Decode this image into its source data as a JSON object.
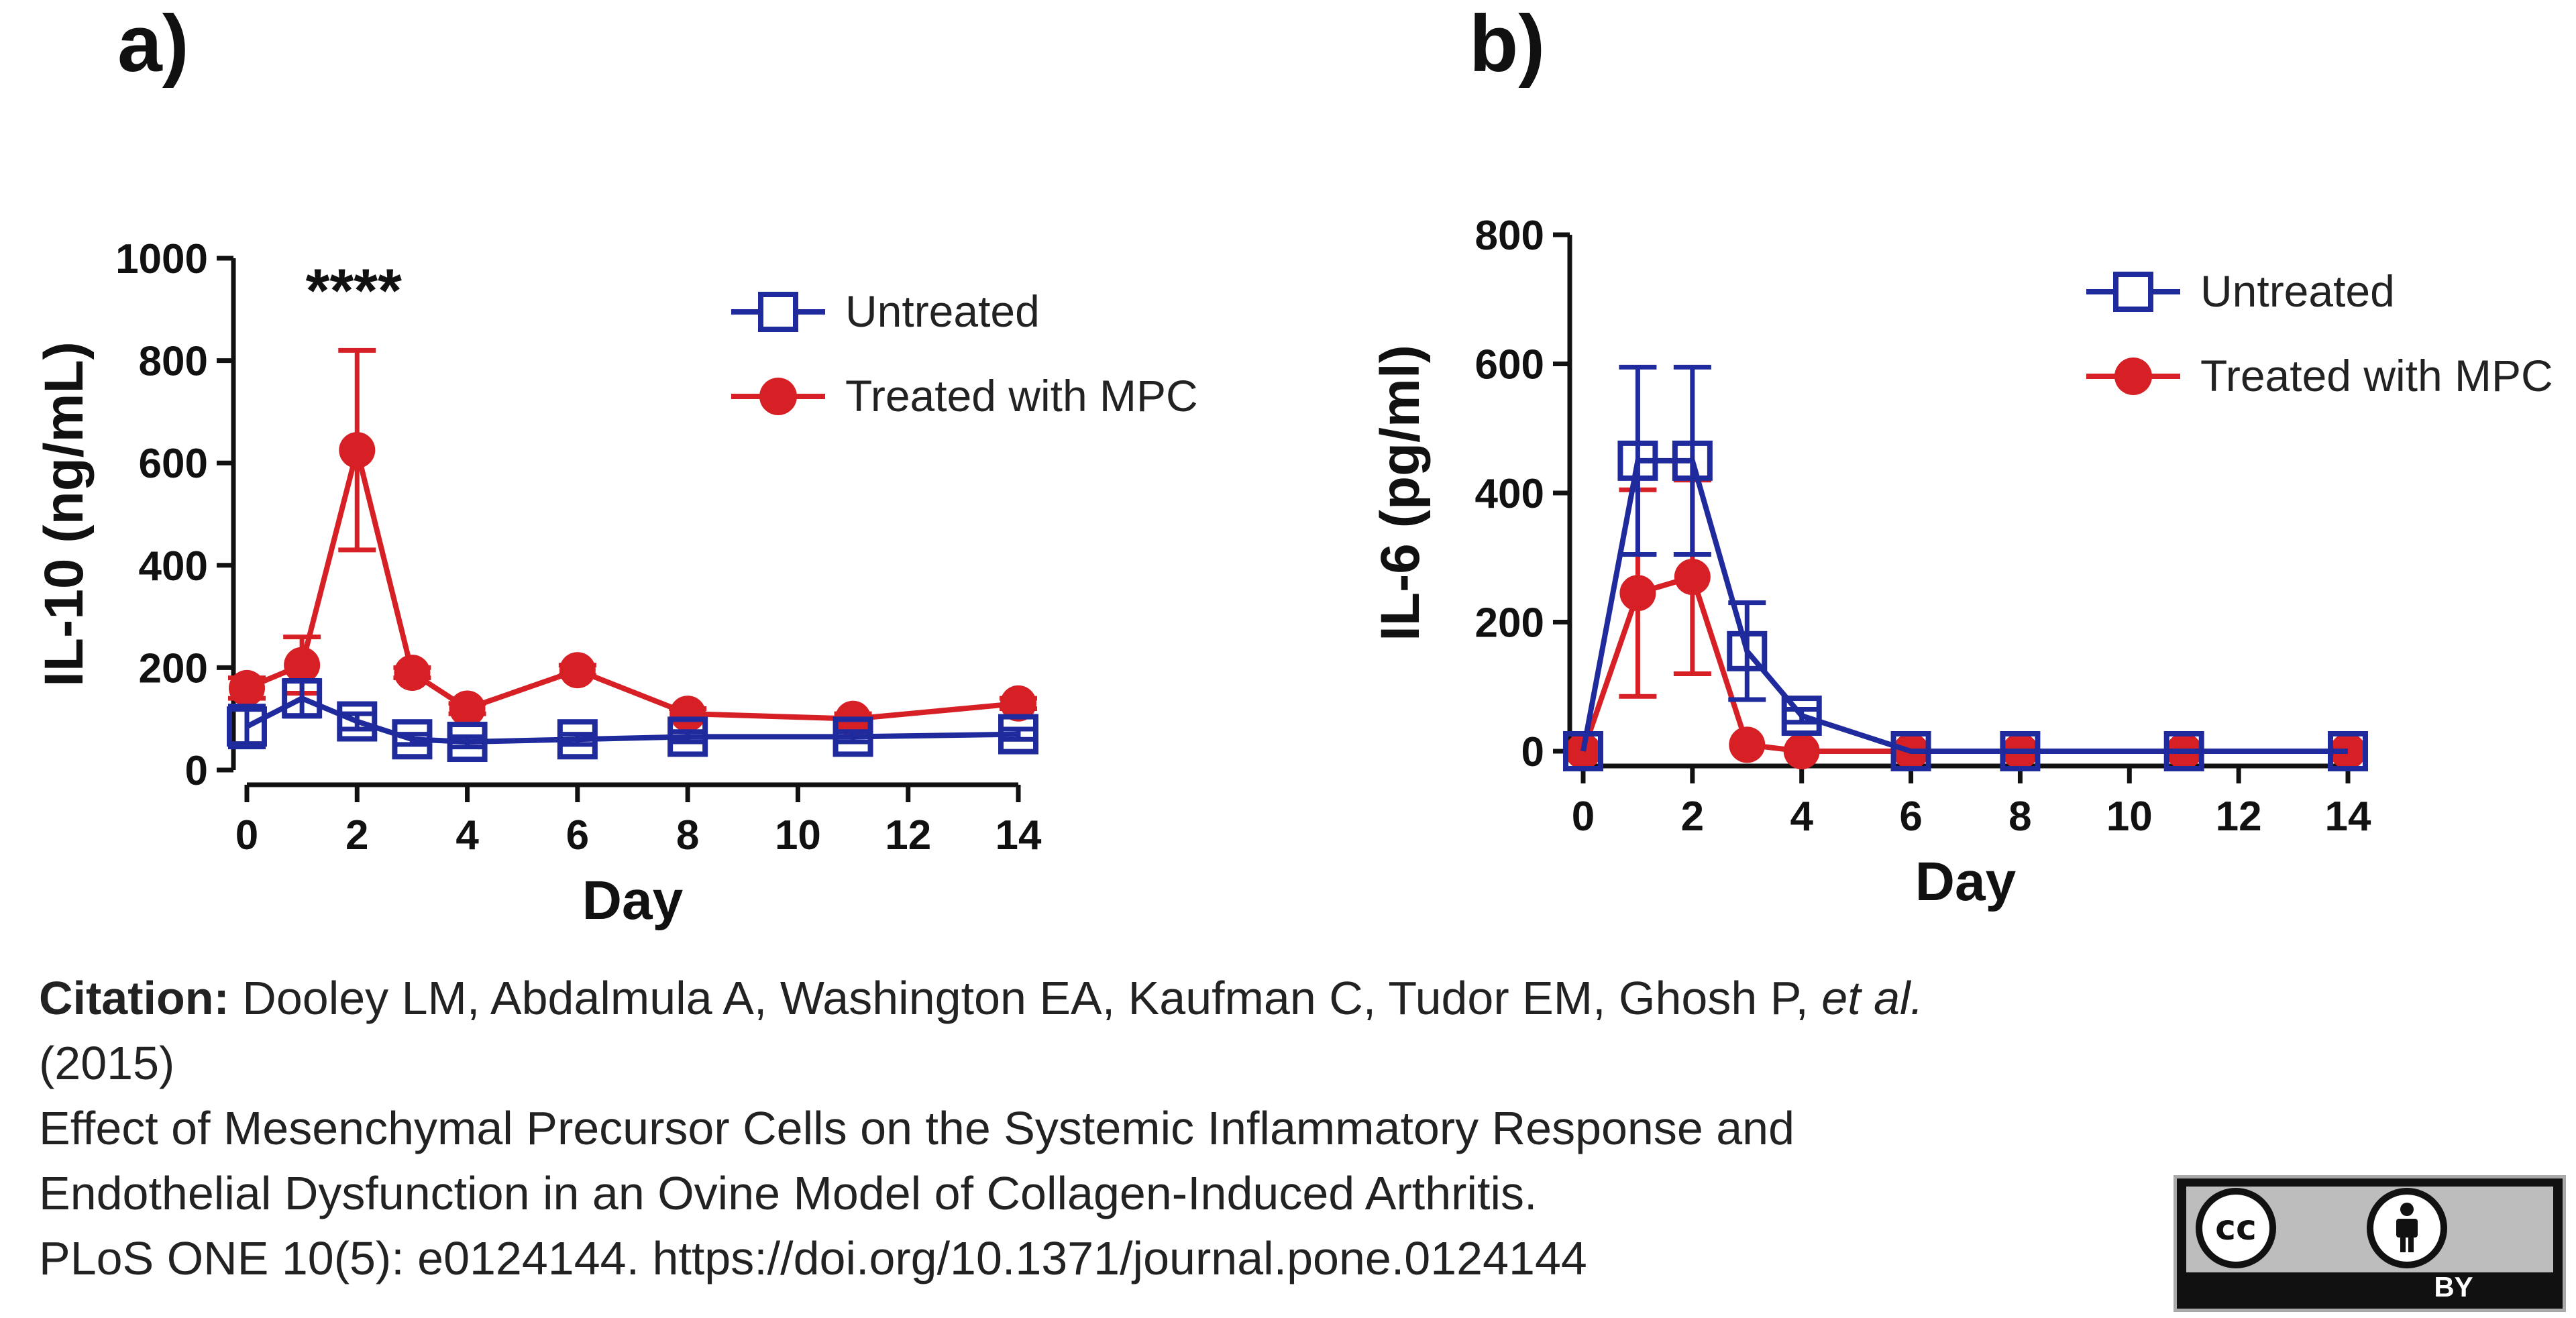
{
  "panels": {
    "a": {
      "label": "a)"
    },
    "b": {
      "label": "b)"
    }
  },
  "colors": {
    "untreated": "#1f2a9c",
    "treated": "#d62025",
    "axis": "#111111"
  },
  "chart_data": [
    {
      "type": "line",
      "panel": "a)",
      "xlabel": "Day",
      "ylabel": "IL-10 (ng/mL)",
      "xlim": [
        0,
        14
      ],
      "ylim": [
        0,
        1000
      ],
      "xticks": [
        0,
        2,
        4,
        6,
        8,
        10,
        12,
        14
      ],
      "yticks": [
        0,
        200,
        400,
        600,
        800,
        1000
      ],
      "grid": false,
      "legend": "top-right",
      "annotation": "****",
      "annotation_x": 2,
      "series": [
        {
          "name": "Untreated",
          "marker": "open-square",
          "color": "#1f2a9c",
          "x": [
            0,
            1,
            2,
            3,
            4,
            6,
            8,
            11,
            14
          ],
          "y": [
            85,
            140,
            95,
            60,
            55,
            60,
            65,
            65,
            70
          ],
          "err": [
            40,
            35,
            15,
            10,
            10,
            10,
            10,
            10,
            10
          ]
        },
        {
          "name": "Treated with MPC",
          "marker": "filled-circle",
          "color": "#d62025",
          "x": [
            0,
            1,
            2,
            3,
            4,
            6,
            8,
            11,
            14
          ],
          "y": [
            160,
            205,
            625,
            190,
            120,
            195,
            110,
            100,
            130
          ],
          "err": [
            20,
            55,
            195,
            10,
            10,
            10,
            10,
            10,
            10
          ]
        }
      ]
    },
    {
      "type": "line",
      "panel": "b)",
      "xlabel": "Day",
      "ylabel": "IL-6 (pg/ml)",
      "xlim": [
        0,
        14
      ],
      "ylim": [
        0,
        800
      ],
      "xticks": [
        0,
        2,
        4,
        6,
        8,
        10,
        12,
        14
      ],
      "yticks": [
        0,
        200,
        400,
        600,
        800
      ],
      "grid": false,
      "legend": "top-right",
      "series": [
        {
          "name": "Untreated",
          "marker": "open-square",
          "color": "#1f2a9c",
          "x": [
            0,
            1,
            2,
            3,
            4,
            6,
            8,
            11,
            14
          ],
          "y": [
            0,
            450,
            450,
            155,
            55,
            0,
            0,
            0,
            0
          ],
          "err": [
            0,
            145,
            145,
            75,
            10,
            0,
            0,
            0,
            0
          ]
        },
        {
          "name": "Treated with MPC",
          "marker": "filled-circle",
          "color": "#d62025",
          "x": [
            0,
            1,
            2,
            3,
            4,
            6,
            8,
            11,
            14
          ],
          "y": [
            0,
            245,
            270,
            10,
            0,
            0,
            0,
            0,
            0
          ],
          "err": [
            0,
            160,
            150,
            0,
            0,
            0,
            0,
            0,
            0
          ]
        }
      ]
    }
  ],
  "citation": {
    "label": "Citation:",
    "authors": " Dooley LM, Abdalmula A, Washington EA, Kaufman C, Tudor EM, Ghosh P, ",
    "etal": "et al.",
    "year": "(2015)",
    "title_line1": "Effect of Mesenchymal Precursor Cells on the Systemic Inflammatory Response and",
    "title_line2": "Endothelial Dysfunction in an Ovine Model of Collagen-Induced Arthritis.",
    "journal": "PLoS ONE 10(5): e0124144. https://doi.org/10.1371/journal.pone.0124144"
  },
  "license": {
    "cc_text": "cc",
    "by_text": "BY",
    "icon": "cc-by-icon"
  }
}
